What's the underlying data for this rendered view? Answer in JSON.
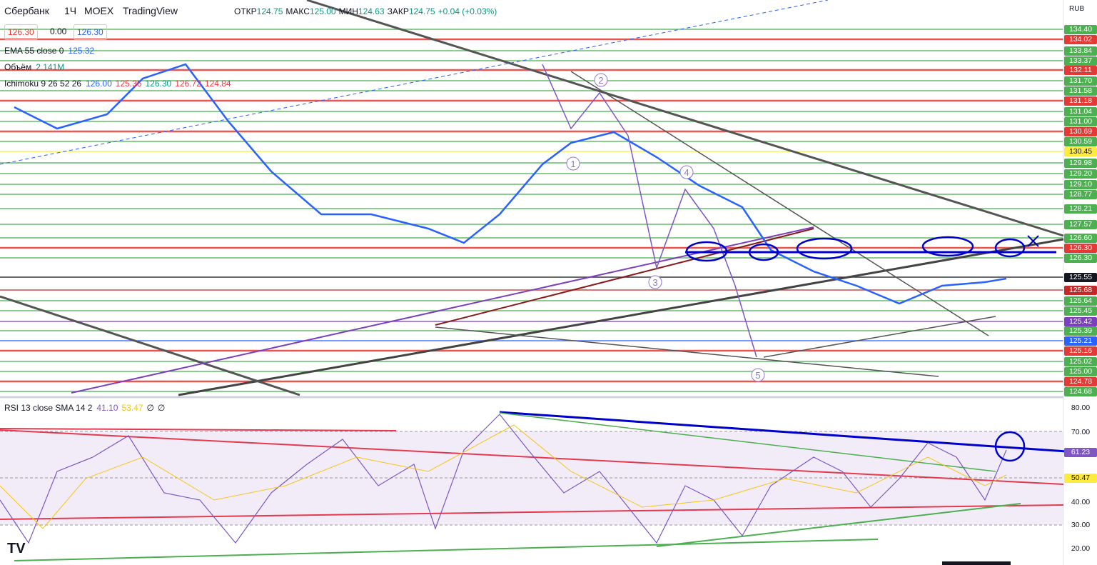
{
  "header": {
    "symbol": "Сбербанк",
    "interval": "1Ч",
    "exchange": "MOEX",
    "source": "TradingView",
    "ohlc": [
      {
        "label": "ОТКР",
        "value": "124.75"
      },
      {
        "label": "МАКС",
        "value": "125.00"
      },
      {
        "label": "МИН",
        "value": "124.63"
      },
      {
        "label": "ЗАКР",
        "value": "124.75"
      }
    ],
    "change": "+0.04 (+0.03%)",
    "currency": "RUB"
  },
  "order_panel": {
    "sell": "126.30",
    "spread": "0.00",
    "buy": "126.30"
  },
  "indicators": [
    {
      "name": "EMA 55 close 0",
      "values": [
        "125.32"
      ]
    },
    {
      "name": "Объём",
      "values": [
        "2.141M"
      ]
    },
    {
      "name": "Ichimoku 9 26 52 26",
      "values": [
        "126.00",
        "125.36",
        "126.30",
        "126.72",
        "124.84"
      ]
    }
  ],
  "price_axis": [
    {
      "text": "134.40",
      "color": "#4caf50"
    },
    {
      "text": "134.02",
      "color": "#e53935"
    },
    {
      "text": "133.84",
      "color": "#4caf50"
    },
    {
      "text": "133.37",
      "color": "#4caf50"
    },
    {
      "text": "132.11",
      "color": "#e53935"
    },
    {
      "text": "131.70",
      "color": "#4caf50"
    },
    {
      "text": "131.58",
      "color": "#4caf50"
    },
    {
      "text": "131.18",
      "color": "#e53935"
    },
    {
      "text": "131.04",
      "color": "#4caf50"
    },
    {
      "text": "131.00",
      "color": "#4caf50"
    },
    {
      "text": "130.69",
      "color": "#e53935"
    },
    {
      "text": "130.59",
      "color": "#4caf50"
    },
    {
      "text": "130.45",
      "color": "#ffeb3b"
    },
    {
      "text": "129.98",
      "color": "#4caf50"
    },
    {
      "text": "129.20",
      "color": "#4caf50"
    },
    {
      "text": "129.10",
      "color": "#4caf50"
    },
    {
      "text": "128.77",
      "color": "#4caf50"
    },
    {
      "text": "128.21",
      "color": "#4caf50"
    },
    {
      "text": "127.57",
      "color": "#4caf50"
    },
    {
      "text": "126.60",
      "color": "#4caf50"
    },
    {
      "text": "126.30",
      "color": "#e53935"
    },
    {
      "text": "126.30",
      "color": "#4caf50"
    },
    {
      "text": "125.55",
      "color": "#131722"
    },
    {
      "text": "125.68",
      "color": "#c62828"
    },
    {
      "text": "125.64",
      "color": "#4caf50"
    },
    {
      "text": "125.45",
      "color": "#4caf50"
    },
    {
      "text": "125.42",
      "color": "#7b3fbf"
    },
    {
      "text": "125.39",
      "color": "#4caf50"
    },
    {
      "text": "125.21",
      "color": "#2962ff"
    },
    {
      "text": "125.16",
      "color": "#e53935"
    },
    {
      "text": "125.02",
      "color": "#4caf50"
    },
    {
      "text": "125.00",
      "color": "#4caf50"
    },
    {
      "text": "124.78",
      "color": "#e53935"
    },
    {
      "text": "124.68",
      "color": "#4caf50"
    }
  ],
  "wave_labels": [
    "1",
    "2",
    "3",
    "4",
    "5"
  ],
  "rsi": {
    "name": "RSI 13 close SMA 14 2",
    "values": [
      "41.10",
      "53.47",
      "∅",
      "∅"
    ],
    "axis": [
      {
        "text": "80.00",
        "color": "none"
      },
      {
        "text": "70.00",
        "color": "none"
      },
      {
        "text": "61.23",
        "color": "#7e57c2"
      },
      {
        "text": "50.47",
        "color": "#ffeb3b"
      },
      {
        "text": "40.00",
        "color": "none"
      },
      {
        "text": "30.00",
        "color": "none"
      },
      {
        "text": "20.00",
        "color": "none"
      }
    ]
  }
}
